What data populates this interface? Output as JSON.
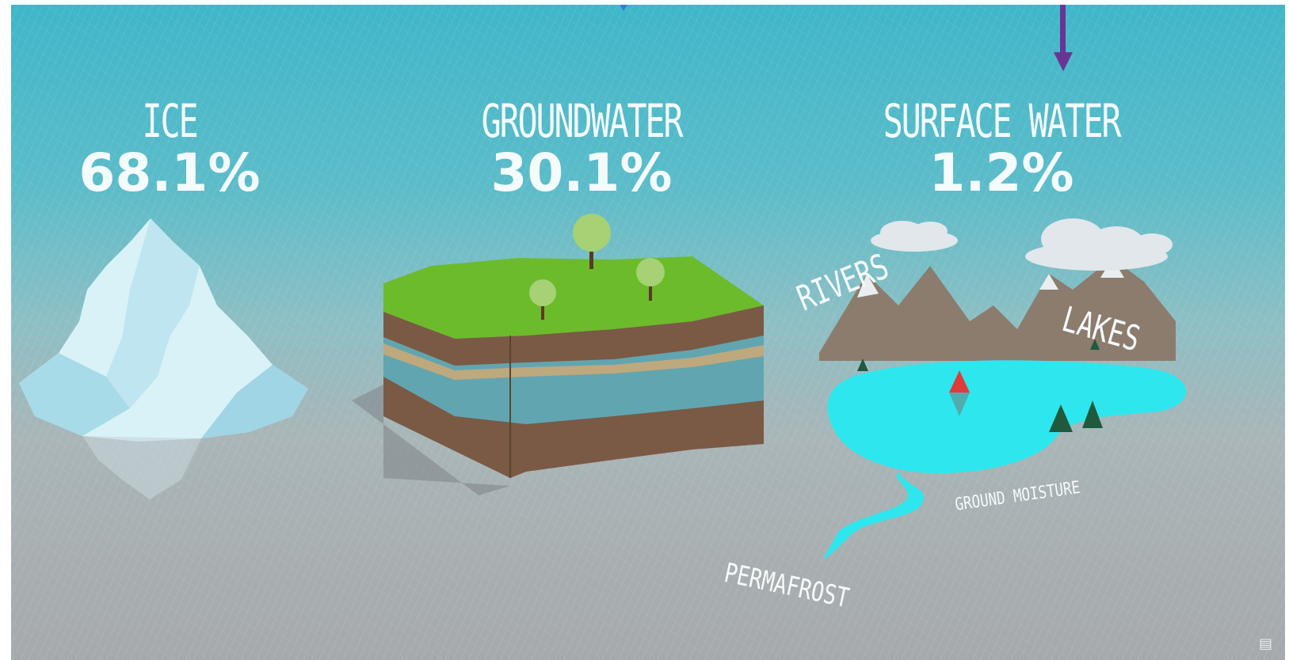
{
  "categories": [
    {
      "name": "ICE",
      "percent": "68.1%"
    },
    {
      "name": "GROUNDWATER",
      "percent": "30.1%"
    },
    {
      "name": "SURFACE WATER",
      "percent": "1.2%"
    }
  ],
  "surface_labels": {
    "rivers": "RIVERS",
    "lakes": "LAKES",
    "ground_moisture": "GROUND MOISTURE",
    "permafrost": "PERMAFROST"
  },
  "colors": {
    "sky": "#3fb6c9",
    "ground": "#a6a9ab",
    "lake": "#2ee7ee",
    "grass": "#6cbb2b",
    "soil": "#7a5a45",
    "arrow_purple": "#6a3494",
    "arrow_blue": "#2b7fd0"
  },
  "icons": [
    "iceberg-icon",
    "soil-block-icon",
    "mountains-icon",
    "lake-icon",
    "sailboat-icon",
    "cloud-icon",
    "tree-icon"
  ]
}
